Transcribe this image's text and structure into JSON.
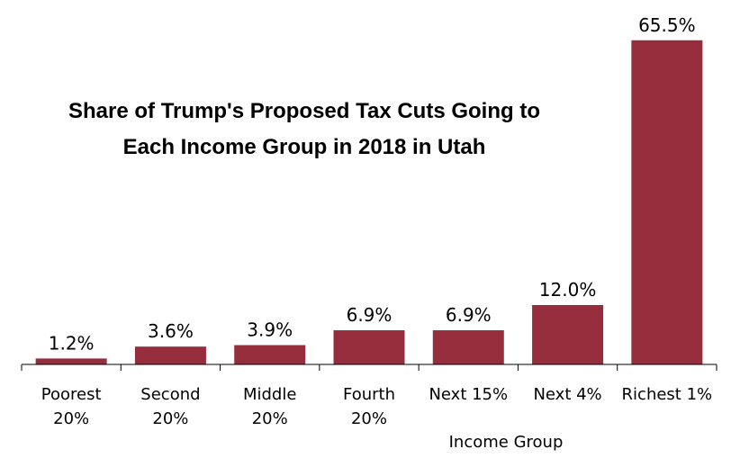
{
  "chart_data": {
    "type": "bar",
    "title_lines": [
      "Share of Trump's Proposed Tax Cuts Going to",
      "Each Income Group in 2018 in Utah"
    ],
    "categories": [
      [
        "Poorest",
        "20%"
      ],
      [
        "Second",
        "20%"
      ],
      [
        "Middle",
        "20%"
      ],
      [
        "Fourth",
        "20%"
      ],
      [
        "Next 15%"
      ],
      [
        "Next 4%"
      ],
      [
        "Richest 1%"
      ]
    ],
    "values": [
      1.2,
      3.6,
      3.9,
      6.9,
      6.9,
      12.0,
      65.5
    ],
    "data_labels": [
      "1.2%",
      "3.6%",
      "3.9%",
      "6.9%",
      "6.9%",
      "12.0%",
      "65.5%"
    ],
    "xlabel": "Income Group",
    "ylabel": "",
    "ylim": [
      0,
      70
    ],
    "grid": false,
    "bar_color": "#952d3c"
  }
}
